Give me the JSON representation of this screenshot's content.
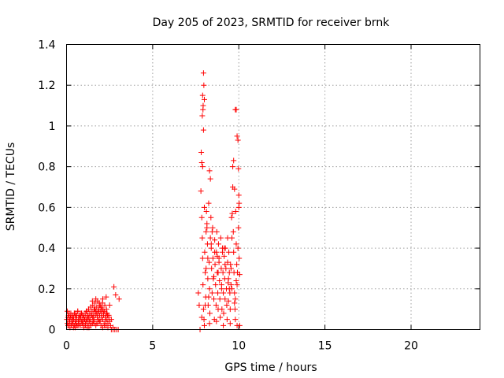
{
  "chart_data": {
    "type": "scatter",
    "title": "Day 205 of 2023, SRMTID for receiver brnk",
    "xlabel": "GPS time / hours",
    "ylabel": "SRMTID / TECUs",
    "xlim": [
      0,
      24
    ],
    "ylim": [
      0,
      1.4
    ],
    "xticks": [
      0,
      5,
      10,
      15,
      20
    ],
    "xtick_labels": [
      "0",
      "5",
      "10",
      "15",
      "20"
    ],
    "yticks": [
      0,
      0.2,
      0.4,
      0.6,
      0.8,
      1,
      1.2,
      1.4
    ],
    "ytick_labels": [
      "0",
      "0.2",
      "0.4",
      "0.6",
      "0.8",
      "1",
      "1.2",
      "1.4"
    ],
    "grid": true,
    "series": [
      {
        "name": "SRMTID",
        "color": "#ff0000",
        "marker": "plus",
        "x": [
          0.02,
          0.05,
          0.08,
          0.1,
          0.12,
          0.15,
          0.18,
          0.2,
          0.22,
          0.25,
          0.28,
          0.3,
          0.33,
          0.35,
          0.38,
          0.4,
          0.42,
          0.45,
          0.48,
          0.5,
          0.52,
          0.55,
          0.58,
          0.6,
          0.62,
          0.65,
          0.68,
          0.7,
          0.72,
          0.75,
          0.78,
          0.8,
          0.82,
          0.85,
          0.88,
          0.9,
          0.92,
          0.95,
          0.98,
          1.0,
          1.02,
          1.05,
          1.08,
          1.1,
          1.12,
          1.15,
          1.18,
          1.2,
          1.22,
          1.25,
          1.28,
          1.3,
          1.32,
          1.35,
          1.38,
          1.4,
          1.42,
          1.45,
          1.48,
          1.5,
          1.52,
          1.55,
          1.58,
          1.6,
          1.62,
          1.65,
          1.68,
          1.7,
          1.72,
          1.75,
          1.78,
          1.8,
          1.82,
          1.85,
          1.88,
          1.9,
          1.92,
          1.95,
          1.98,
          2.0,
          2.02,
          2.05,
          2.08,
          2.1,
          2.12,
          2.15,
          2.18,
          2.2,
          2.22,
          2.25,
          2.28,
          2.3,
          2.32,
          2.35,
          2.38,
          2.4,
          2.45,
          2.5,
          2.55,
          2.6,
          2.7,
          2.8,
          2.9,
          3.0,
          0.1,
          0.3,
          0.5,
          0.7,
          0.9,
          1.1,
          1.3,
          1.5,
          1.7,
          1.9,
          2.1,
          2.3,
          0.2,
          0.6,
          1.0,
          1.4,
          1.8,
          2.2,
          0.4,
          0.8,
          1.2,
          1.6,
          2.0,
          2.4,
          1.7,
          1.9,
          2.1,
          2.3,
          1.5,
          1.95,
          2.05,
          2.35,
          2.5,
          2.75,
          2.85,
          3.05,
          2.6,
          2.7,
          0.05,
          0.15,
          0.25,
          0.35,
          0.45,
          0.55,
          0.65,
          0.75,
          0.85,
          0.95,
          1.05,
          1.15,
          1.25,
          1.35,
          1.45,
          1.55,
          1.65,
          1.75,
          1.85,
          2.15,
          2.25,
          2.45,
          7.65,
          7.7,
          7.75,
          7.8,
          7.82,
          7.85,
          7.88,
          7.9,
          7.92,
          7.95,
          7.98,
          8.0,
          8.02,
          8.05,
          8.08,
          8.1,
          8.12,
          8.15,
          8.18,
          8.2,
          8.22,
          8.25,
          8.28,
          8.3,
          8.32,
          8.35,
          8.38,
          8.4,
          8.42,
          8.45,
          8.48,
          8.5,
          8.52,
          8.55,
          8.58,
          8.6,
          8.62,
          8.65,
          8.68,
          8.7,
          8.72,
          8.75,
          8.78,
          8.8,
          8.82,
          8.85,
          8.88,
          8.9,
          8.92,
          8.95,
          8.98,
          9.0,
          9.02,
          9.05,
          9.08,
          9.1,
          9.12,
          9.15,
          9.18,
          9.2,
          9.22,
          9.25,
          9.28,
          9.3,
          9.32,
          9.35,
          9.38,
          9.4,
          9.42,
          9.45,
          9.48,
          9.5,
          9.52,
          9.55,
          9.58,
          9.6,
          9.62,
          9.65,
          9.68,
          9.7,
          9.72,
          9.75,
          9.78,
          9.8,
          9.82,
          9.85,
          9.88,
          9.9,
          9.92,
          9.95,
          9.98,
          10.0,
          10.02,
          10.05,
          7.95,
          7.97,
          7.9,
          7.93,
          7.88,
          7.92,
          7.95,
          8.0,
          7.85,
          7.9,
          8.3,
          8.35,
          9.65,
          9.7,
          9.75,
          9.8,
          9.85,
          9.9,
          9.95,
          9.98,
          10.0,
          10.02,
          8.1,
          8.2,
          8.4,
          8.6,
          8.8,
          9.0,
          9.2,
          9.4,
          9.6,
          9.8,
          8.15,
          8.45,
          8.75,
          9.05,
          9.35,
          9.55,
          9.85,
          10.05,
          7.85,
          8.05,
          8.25,
          8.55,
          8.85,
          9.15,
          9.45,
          9.75,
          8.0,
          8.3,
          8.7,
          9.1,
          9.5,
          9.9
        ],
        "y": [
          0.05,
          0.03,
          0.06,
          0.02,
          0.07,
          0.04,
          0.05,
          0.03,
          0.06,
          0.08,
          0.02,
          0.05,
          0.04,
          0.07,
          0.03,
          0.06,
          0.05,
          0.02,
          0.08,
          0.04,
          0.06,
          0.03,
          0.07,
          0.05,
          0.02,
          0.09,
          0.04,
          0.06,
          0.03,
          0.05,
          0.07,
          0.02,
          0.06,
          0.04,
          0.08,
          0.05,
          0.03,
          0.07,
          0.04,
          0.06,
          0.02,
          0.05,
          0.08,
          0.03,
          0.06,
          0.04,
          0.09,
          0.05,
          0.07,
          0.03,
          0.1,
          0.06,
          0.04,
          0.08,
          0.05,
          0.11,
          0.03,
          0.07,
          0.09,
          0.06,
          0.12,
          0.04,
          0.08,
          0.1,
          0.05,
          0.13,
          0.07,
          0.09,
          0.03,
          0.11,
          0.06,
          0.14,
          0.08,
          0.05,
          0.1,
          0.12,
          0.07,
          0.04,
          0.09,
          0.11,
          0.06,
          0.08,
          0.13,
          0.05,
          0.1,
          0.07,
          0.03,
          0.09,
          0.12,
          0.06,
          0.04,
          0.08,
          0.1,
          0.05,
          0.07,
          0.03,
          0.06,
          0.04,
          0.02,
          0.05,
          0.01,
          0.0,
          0.0,
          0.0,
          0.02,
          0.03,
          0.01,
          0.02,
          0.03,
          0.02,
          0.01,
          0.03,
          0.02,
          0.04,
          0.01,
          0.02,
          0.01,
          0.02,
          0.01,
          0.02,
          0.03,
          0.02,
          0.01,
          0.02,
          0.01,
          0.03,
          0.02,
          0.01,
          0.15,
          0.13,
          0.15,
          0.16,
          0.14,
          0.12,
          0.1,
          0.08,
          0.12,
          0.21,
          0.17,
          0.15,
          0.0,
          0.0,
          0.09,
          0.08,
          0.07,
          0.06,
          0.08,
          0.07,
          0.09,
          0.06,
          0.08,
          0.07,
          0.05,
          0.09,
          0.06,
          0.08,
          0.07,
          0.06,
          0.1,
          0.08,
          0.09,
          0.08,
          0.06,
          0.07,
          0.18,
          0.12,
          0.0,
          0.68,
          0.87,
          0.55,
          0.45,
          0.35,
          0.22,
          0.1,
          0.05,
          0.6,
          0.38,
          0.28,
          0.16,
          0.48,
          0.58,
          0.52,
          0.42,
          0.25,
          0.12,
          0.62,
          0.33,
          0.2,
          0.08,
          0.45,
          0.55,
          0.4,
          0.3,
          0.18,
          0.5,
          0.35,
          0.25,
          0.15,
          0.05,
          0.44,
          0.32,
          0.22,
          0.12,
          0.38,
          0.48,
          0.28,
          0.18,
          0.1,
          0.42,
          0.35,
          0.24,
          0.15,
          0.06,
          0.45,
          0.3,
          0.2,
          0.1,
          0.38,
          0.28,
          0.18,
          0.08,
          0.36,
          0.25,
          0.15,
          0.4,
          0.3,
          0.2,
          0.12,
          0.05,
          0.33,
          0.23,
          0.14,
          0.38,
          0.28,
          0.18,
          0.1,
          0.32,
          0.22,
          0.55,
          0.45,
          0.57,
          0.7,
          0.48,
          0.38,
          0.28,
          0.18,
          0.1,
          0.05,
          0.58,
          0.42,
          0.32,
          0.22,
          0.28,
          0.4,
          0.5,
          0.6,
          0.35,
          0.27,
          1.26,
          1.2,
          1.15,
          1.1,
          1.05,
          1.08,
          0.98,
          1.13,
          0.82,
          0.8,
          0.78,
          0.74,
          0.8,
          0.83,
          0.69,
          1.08,
          1.08,
          0.95,
          0.93,
          0.79,
          0.66,
          0.62,
          0.3,
          0.35,
          0.42,
          0.38,
          0.28,
          0.22,
          0.32,
          0.25,
          0.2,
          0.15,
          0.5,
          0.48,
          0.36,
          0.4,
          0.45,
          0.3,
          0.24,
          0.02,
          0.06,
          0.12,
          0.16,
          0.26,
          0.33,
          0.4,
          0.2,
          0.13,
          0.02,
          0.03,
          0.04,
          0.02,
          0.03,
          0.02
        ]
      }
    ]
  }
}
